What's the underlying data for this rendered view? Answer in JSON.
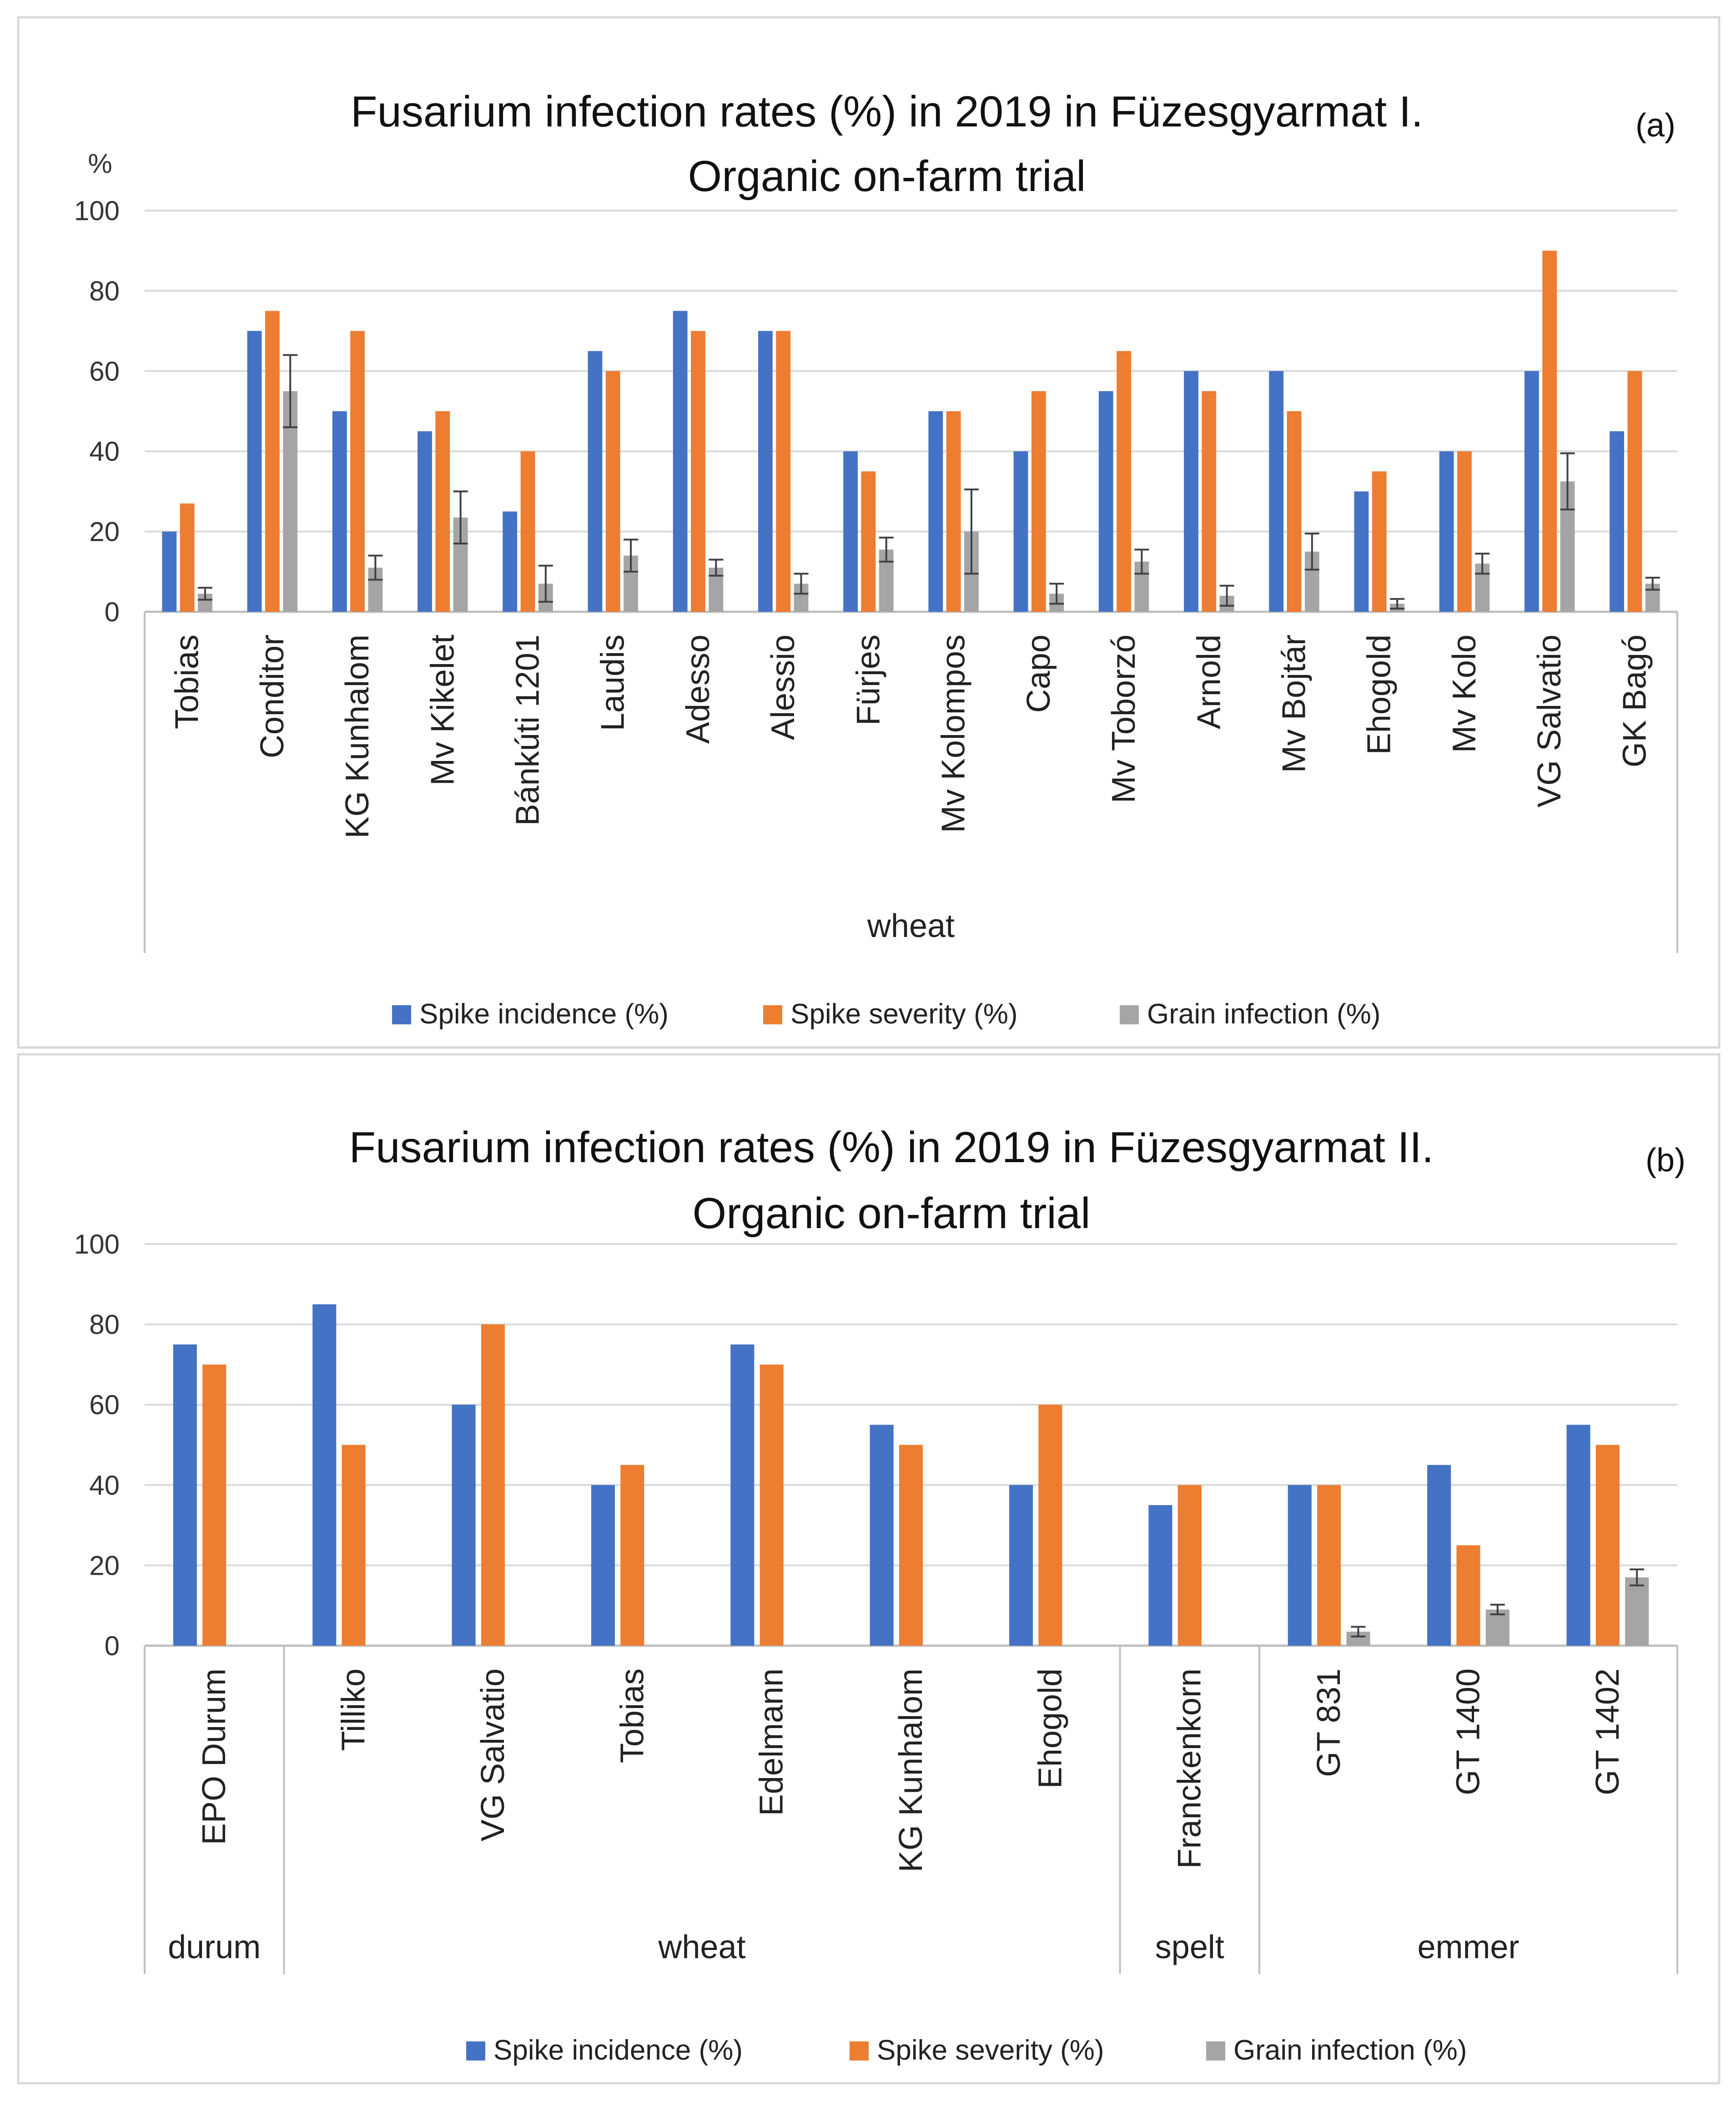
{
  "colors": {
    "incidence": "#4472c4",
    "severity": "#ed7d31",
    "grain": "#a5a5a5",
    "grid": "#d9d9d9",
    "axis": "#bfbfbf",
    "error": "#404040"
  },
  "chart_data": [
    {
      "panel": "(a)",
      "type": "bar",
      "title_line1": "Fusarium infection rates (%) in 2019 in Füzesgyarmat I.",
      "title_line2": "Organic on-farm trial",
      "ylabel": "%",
      "ylim": [
        0,
        100
      ],
      "yticks": [
        0,
        20,
        40,
        60,
        80,
        100
      ],
      "grid": true,
      "legend_position": "bottom",
      "categories": [
        "Tobias",
        "Conditor",
        "KG Kunhalom",
        "Mv Kikelet",
        "Bánkúti 1201",
        "Laudis",
        "Adesso",
        "Alessio",
        "Fürjes",
        "Mv Kolompos",
        "Capo",
        "Mv Toborzó",
        "Arnold",
        "Mv Bojtár",
        "Ehogold",
        "Mv Kolo",
        "VG Salvatio",
        "GK Bagó"
      ],
      "groups": [
        {
          "label": "wheat",
          "count": 18
        }
      ],
      "series": [
        {
          "name": "Spike incidence (%)",
          "values": [
            20,
            70,
            50,
            45,
            25,
            65,
            75,
            70,
            40,
            50,
            40,
            55,
            60,
            60,
            30,
            40,
            60,
            45
          ]
        },
        {
          "name": "Spike severity (%)",
          "values": [
            27,
            75,
            70,
            50,
            40,
            60,
            70,
            70,
            35,
            50,
            55,
            65,
            55,
            50,
            35,
            40,
            90,
            60
          ]
        },
        {
          "name": "Grain infection (%)",
          "values": [
            4.5,
            55,
            11,
            23.5,
            7,
            14,
            11,
            7,
            15.5,
            20,
            4.5,
            12.5,
            4,
            15,
            2,
            12,
            32.5,
            7
          ],
          "errors": [
            1.5,
            9,
            3,
            6.5,
            4.5,
            4,
            2,
            2.5,
            3,
            10.5,
            2.5,
            3,
            2.5,
            4.5,
            1.2,
            2.5,
            7,
            1.5
          ]
        }
      ]
    },
    {
      "panel": "(b)",
      "type": "bar",
      "title_line1": "Fusarium infection rates (%) in 2019 in Füzesgyarmat II.",
      "title_line2": "Organic on-farm trial",
      "ylabel": "",
      "ylim": [
        0,
        100
      ],
      "yticks": [
        0,
        20,
        40,
        60,
        80,
        100
      ],
      "grid": true,
      "legend_position": "bottom",
      "categories": [
        "EPO Durum",
        "Tilliko",
        "VG Salvatio",
        "Tobias",
        "Edelmann",
        "KG Kunhalom",
        "Ehogold",
        "Franckenkorn",
        "GT 831",
        "GT 1400",
        "GT 1402"
      ],
      "groups": [
        {
          "label": "durum",
          "count": 1
        },
        {
          "label": "wheat",
          "count": 6
        },
        {
          "label": "spelt",
          "count": 1
        },
        {
          "label": "emmer",
          "count": 3
        }
      ],
      "series": [
        {
          "name": "Spike incidence (%)",
          "values": [
            75,
            85,
            60,
            40,
            75,
            55,
            40,
            35,
            40,
            45,
            55
          ]
        },
        {
          "name": "Spike severity (%)",
          "values": [
            70,
            50,
            80,
            45,
            70,
            50,
            60,
            40,
            40,
            25,
            50
          ]
        },
        {
          "name": "Grain infection (%)",
          "values": [
            null,
            null,
            null,
            null,
            null,
            null,
            null,
            null,
            3.5,
            9,
            17
          ],
          "errors": [
            null,
            null,
            null,
            null,
            null,
            null,
            null,
            null,
            1.2,
            1.2,
            2
          ]
        }
      ]
    }
  ]
}
